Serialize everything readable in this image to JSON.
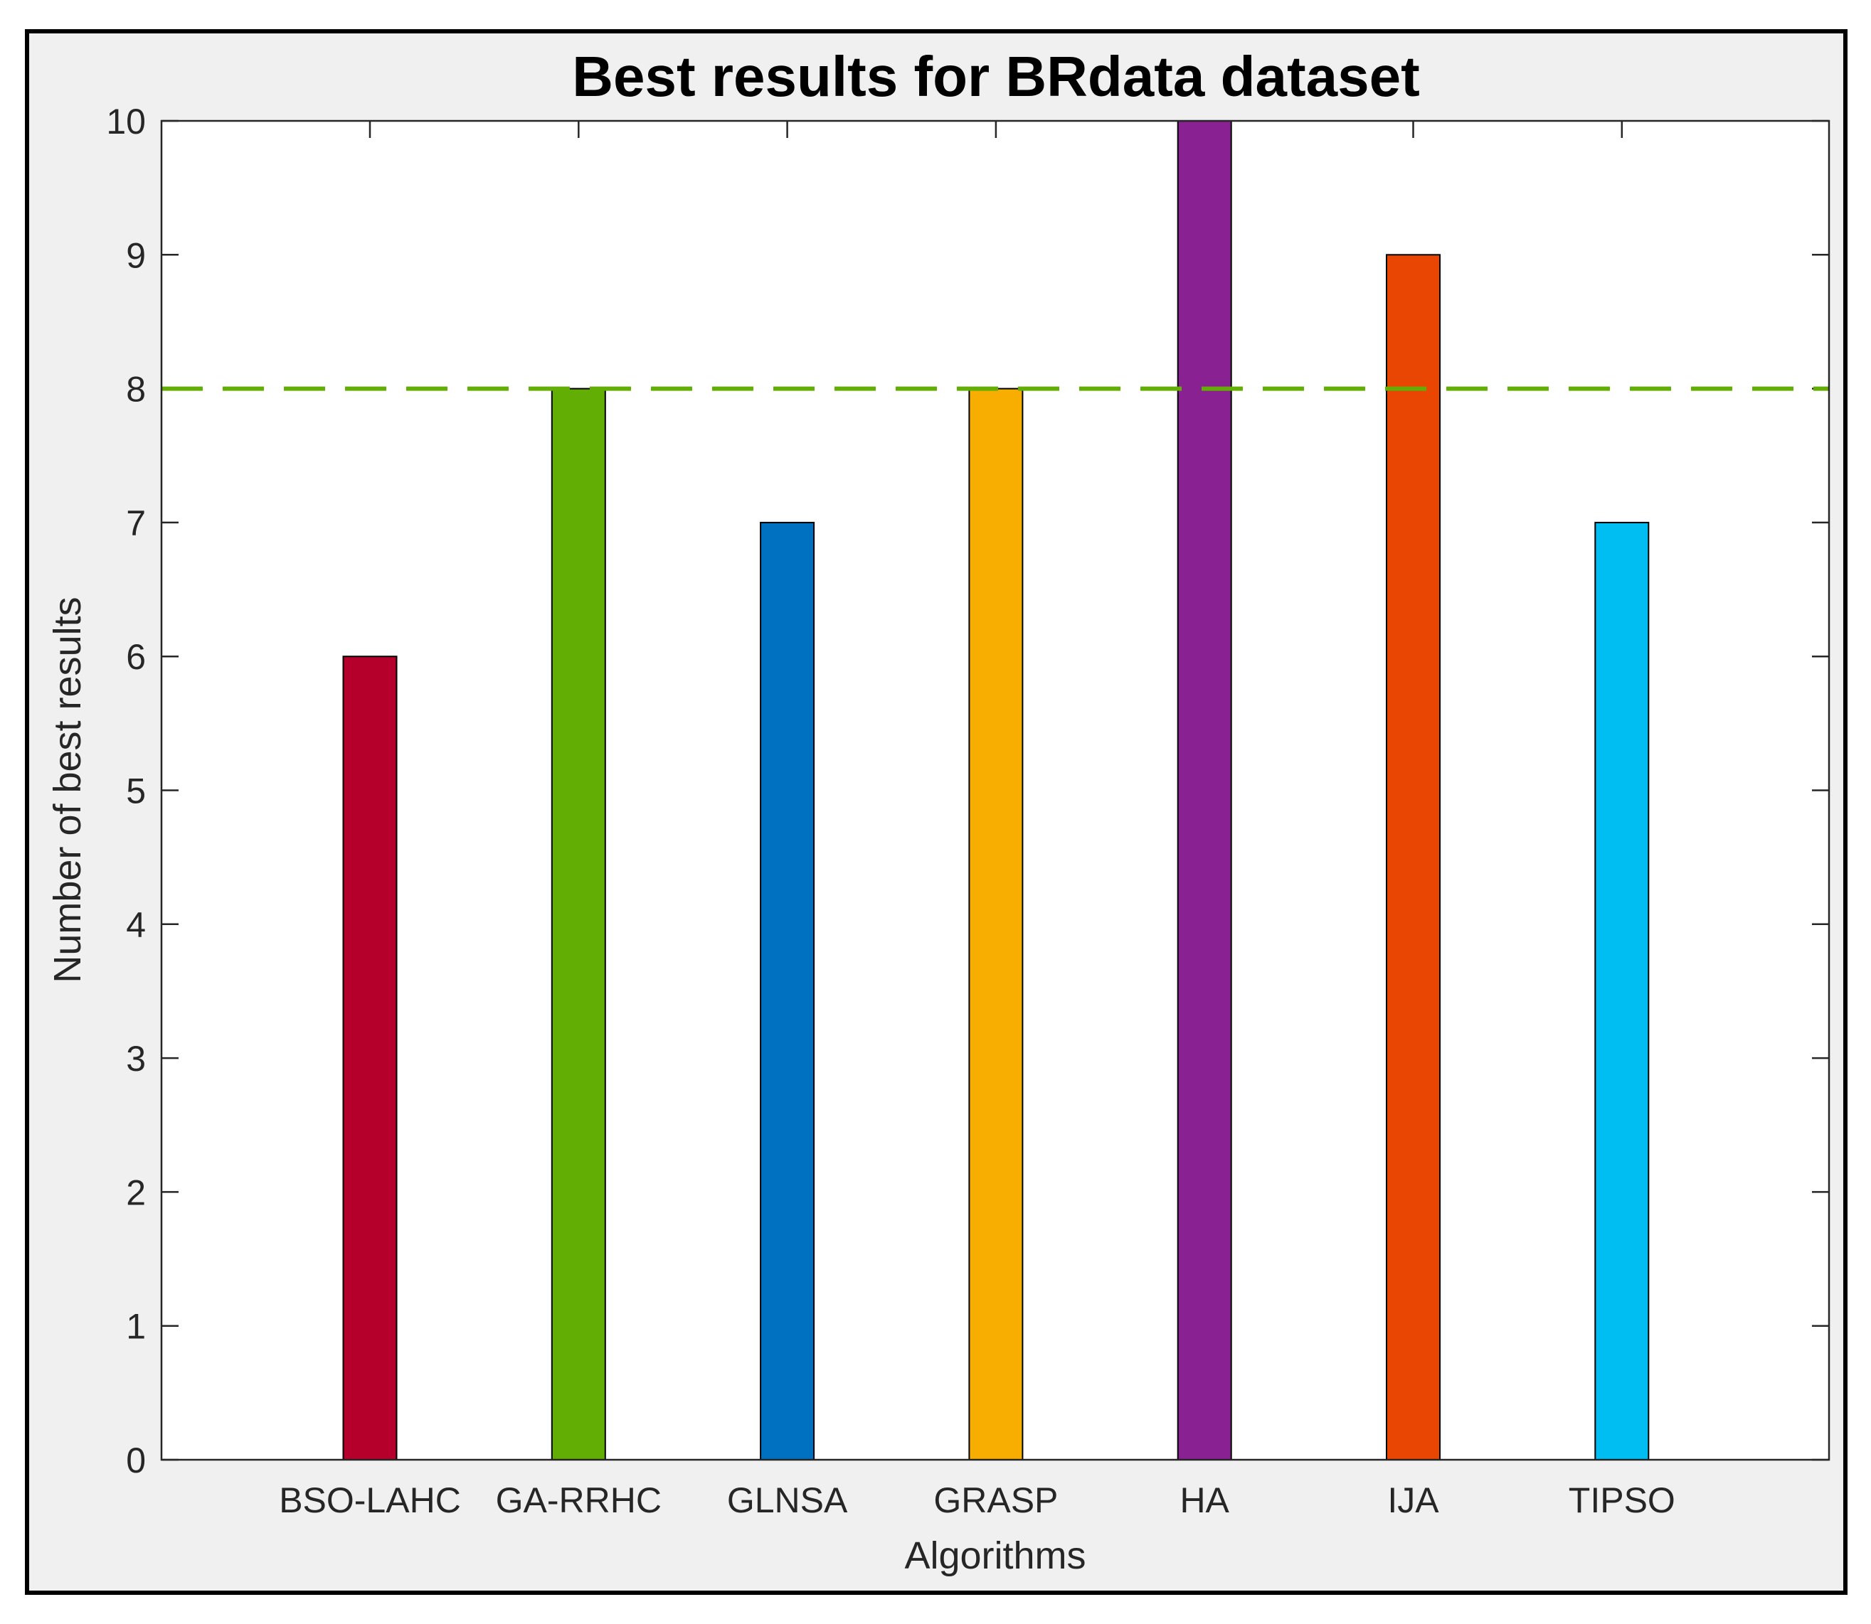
{
  "chart_data": {
    "type": "bar",
    "title": "Best results for BRdata dataset",
    "xlabel": "Algorithms",
    "ylabel": "Number of best results",
    "categories": [
      "BSO-LAHC",
      "GA-RRHC",
      "GLNSA",
      "GRASP",
      "HA",
      "IJA",
      "TIPSO"
    ],
    "values": [
      6,
      8,
      7,
      8,
      10,
      9,
      7
    ],
    "colors": [
      "#B5002B",
      "#62AE04",
      "#0070C0",
      "#F7AE00",
      "#8A2192",
      "#EA4603",
      "#00BEF2"
    ],
    "ylim": [
      0,
      10
    ],
    "yticks": [
      0,
      1,
      2,
      3,
      4,
      5,
      6,
      7,
      8,
      9,
      10
    ],
    "reference_line": {
      "y": 8,
      "style": "dashed",
      "color": "#62AE04"
    },
    "grid": false,
    "legend": "none"
  }
}
